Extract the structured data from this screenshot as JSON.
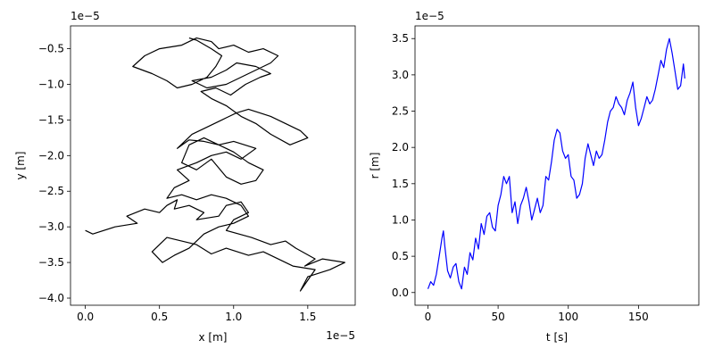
{
  "colors": {
    "left_series": "#000000",
    "right_series": "#0000ff",
    "axes": "#000000",
    "background": "#ffffff"
  },
  "chart_data": [
    {
      "type": "line",
      "title": "",
      "xlabel": "x [m]",
      "ylabel": "y [m]",
      "x_offset_text": "1e−5",
      "y_offset_text": "1e−5",
      "xlim": [
        -0.1,
        1.82
      ],
      "ylim": [
        -4.1,
        -0.18
      ],
      "xticks": [
        0.0,
        0.5,
        1.0,
        1.5
      ],
      "xtick_labels": [
        "0.0",
        "0.5",
        "1.0",
        "1.5"
      ],
      "yticks": [
        -4.0,
        -3.5,
        -3.0,
        -2.5,
        -2.0,
        -1.5,
        -1.0,
        -0.5
      ],
      "ytick_labels": [
        "−4.0",
        "−3.5",
        "−3.0",
        "−2.5",
        "−2.0",
        "−1.5",
        "−1.0",
        "−0.5"
      ],
      "grid": false,
      "series": [
        {
          "color": "#000000",
          "x": [
            0.0,
            0.05,
            0.2,
            0.35,
            0.28,
            0.4,
            0.5,
            0.55,
            0.62,
            0.6,
            0.7,
            0.8,
            0.75,
            0.9,
            0.95,
            1.05,
            1.1,
            1.0,
            0.95,
            1.12,
            1.25,
            1.35,
            1.42,
            1.55,
            1.48,
            1.6,
            1.75,
            1.65,
            1.5,
            1.45,
            1.55,
            1.4,
            1.3,
            1.2,
            1.1,
            0.95,
            0.85,
            0.75,
            0.55,
            0.45,
            0.52,
            0.6,
            0.7,
            0.8,
            0.9,
            1.0,
            1.1,
            1.05,
            0.95,
            0.85,
            0.75,
            0.65,
            0.55,
            0.6,
            0.7,
            0.62,
            0.75,
            0.85,
            0.95,
            1.05,
            1.15,
            1.0,
            0.9,
            0.8,
            0.7,
            0.65,
            0.75,
            0.85,
            0.95,
            1.05,
            1.15,
            1.2,
            1.1,
            1.0,
            0.9,
            0.8,
            0.7,
            0.62,
            0.72,
            0.82,
            0.92,
            1.02,
            1.1,
            1.25,
            1.35,
            1.45,
            1.5,
            1.38,
            1.25,
            1.15,
            1.05,
            0.95,
            0.85,
            0.78,
            0.88,
            0.98,
            1.08,
            1.18,
            1.25,
            1.15,
            1.02,
            0.95,
            0.85,
            0.72,
            0.82,
            0.95,
            1.05,
            1.15,
            1.25,
            1.3,
            1.2,
            1.1,
            1.0,
            0.9,
            0.85,
            0.75,
            0.65,
            0.5,
            0.4,
            0.32,
            0.45,
            0.55,
            0.62,
            0.72,
            0.82,
            0.88,
            0.92,
            0.85,
            0.75,
            0.7
          ],
          "y": [
            -3.05,
            -3.1,
            -3.0,
            -2.95,
            -2.85,
            -2.75,
            -2.8,
            -2.7,
            -2.62,
            -2.75,
            -2.7,
            -2.8,
            -2.9,
            -2.85,
            -2.7,
            -2.65,
            -2.8,
            -2.9,
            -3.05,
            -3.15,
            -3.25,
            -3.2,
            -3.3,
            -3.45,
            -3.55,
            -3.45,
            -3.5,
            -3.6,
            -3.7,
            -3.9,
            -3.6,
            -3.55,
            -3.45,
            -3.35,
            -3.4,
            -3.3,
            -3.38,
            -3.25,
            -3.15,
            -3.35,
            -3.5,
            -3.4,
            -3.3,
            -3.1,
            -3.0,
            -2.95,
            -2.85,
            -2.7,
            -2.6,
            -2.55,
            -2.62,
            -2.55,
            -2.6,
            -2.45,
            -2.35,
            -2.2,
            -2.1,
            -2.0,
            -1.95,
            -2.05,
            -1.9,
            -1.8,
            -1.85,
            -1.75,
            -1.85,
            -2.1,
            -2.2,
            -2.05,
            -2.3,
            -2.4,
            -2.35,
            -2.2,
            -2.1,
            -1.95,
            -1.85,
            -1.8,
            -1.78,
            -1.9,
            -1.7,
            -1.6,
            -1.5,
            -1.4,
            -1.35,
            -1.45,
            -1.55,
            -1.65,
            -1.75,
            -1.85,
            -1.7,
            -1.55,
            -1.45,
            -1.3,
            -1.2,
            -1.1,
            -1.05,
            -1.15,
            -1.0,
            -0.9,
            -0.85,
            -0.75,
            -0.7,
            -0.8,
            -0.9,
            -0.95,
            -1.05,
            -1.0,
            -0.9,
            -0.8,
            -0.7,
            -0.6,
            -0.5,
            -0.55,
            -0.45,
            -0.5,
            -0.4,
            -0.35,
            -0.45,
            -0.5,
            -0.6,
            -0.75,
            -0.85,
            -0.95,
            -1.05,
            -1.0,
            -0.9,
            -0.75,
            -0.6,
            -0.5,
            -0.38,
            -0.35
          ]
        }
      ]
    },
    {
      "type": "line",
      "title": "",
      "xlabel": "t [s]",
      "ylabel": "r [m]",
      "y_offset_text": "1e−5",
      "xlim": [
        -9.2,
        193
      ],
      "ylim": [
        -0.175,
        3.675
      ],
      "xticks": [
        0,
        50,
        100,
        150
      ],
      "xtick_labels": [
        "0",
        "50",
        "100",
        "150"
      ],
      "yticks": [
        0.0,
        0.5,
        1.0,
        1.5,
        2.0,
        2.5,
        3.0,
        3.5
      ],
      "ytick_labels": [
        "0.0",
        "0.5",
        "1.0",
        "1.5",
        "2.0",
        "2.5",
        "3.0",
        "3.5"
      ],
      "grid": false,
      "series": [
        {
          "color": "#0000ff",
          "x": [
            0,
            2,
            4,
            6,
            8,
            10,
            11,
            12,
            14,
            16,
            18,
            20,
            22,
            24,
            26,
            28,
            30,
            32,
            34,
            36,
            38,
            40,
            42,
            44,
            46,
            48,
            50,
            52,
            54,
            56,
            58,
            60,
            62,
            64,
            66,
            68,
            70,
            72,
            74,
            76,
            78,
            80,
            82,
            84,
            86,
            88,
            90,
            92,
            94,
            96,
            98,
            100,
            102,
            104,
            106,
            108,
            110,
            112,
            114,
            116,
            118,
            120,
            122,
            124,
            126,
            128,
            130,
            132,
            134,
            136,
            138,
            140,
            142,
            144,
            146,
            148,
            150,
            152,
            154,
            156,
            158,
            160,
            162,
            164,
            166,
            168,
            170,
            172,
            174,
            176,
            178,
            180,
            182,
            183
          ],
          "y": [
            0.05,
            0.15,
            0.1,
            0.25,
            0.5,
            0.75,
            0.85,
            0.65,
            0.3,
            0.2,
            0.35,
            0.4,
            0.15,
            0.05,
            0.35,
            0.25,
            0.55,
            0.45,
            0.75,
            0.6,
            0.95,
            0.8,
            1.05,
            1.1,
            0.9,
            0.85,
            1.2,
            1.35,
            1.6,
            1.5,
            1.6,
            1.1,
            1.25,
            0.95,
            1.2,
            1.3,
            1.45,
            1.25,
            1.0,
            1.15,
            1.3,
            1.1,
            1.2,
            1.6,
            1.55,
            1.8,
            2.1,
            2.25,
            2.2,
            1.95,
            1.85,
            1.9,
            1.6,
            1.55,
            1.3,
            1.35,
            1.5,
            1.85,
            2.05,
            1.9,
            1.75,
            1.95,
            1.85,
            1.9,
            2.1,
            2.35,
            2.5,
            2.55,
            2.7,
            2.6,
            2.55,
            2.45,
            2.65,
            2.75,
            2.9,
            2.55,
            2.3,
            2.4,
            2.55,
            2.7,
            2.6,
            2.65,
            2.8,
            3.0,
            3.2,
            3.1,
            3.35,
            3.5,
            3.3,
            3.05,
            2.8,
            2.85,
            3.15,
            2.95
          ]
        }
      ]
    }
  ]
}
